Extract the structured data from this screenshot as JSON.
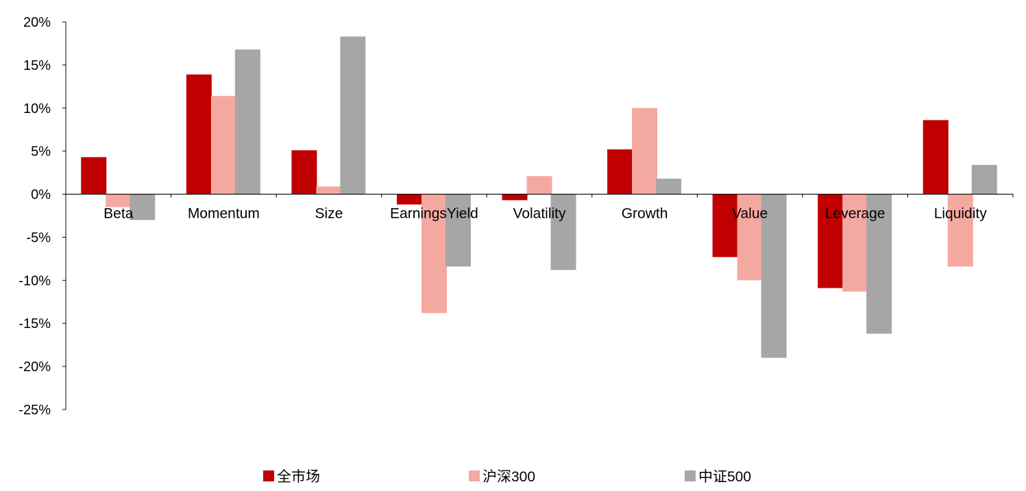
{
  "chart_data": {
    "type": "bar",
    "categories": [
      "Beta",
      "Momentum",
      "Size",
      "EarningsYield",
      "Volatility",
      "Growth",
      "Value",
      "Leverage",
      "Liquidity"
    ],
    "series": [
      {
        "name": "全市场",
        "color": "#c00000",
        "values": [
          4.3,
          13.9,
          5.1,
          -1.2,
          -0.7,
          5.2,
          -7.3,
          -10.9,
          8.6
        ]
      },
      {
        "name": "沪深300",
        "color": "#f4a9a0",
        "values": [
          -1.5,
          11.4,
          0.9,
          -13.8,
          2.1,
          10.0,
          -10.0,
          -11.3,
          -8.4
        ]
      },
      {
        "name": "中证500",
        "color": "#a6a6a6",
        "values": [
          -3.0,
          16.8,
          18.3,
          -8.4,
          -8.8,
          1.8,
          -19.0,
          -16.2,
          3.4
        ]
      }
    ],
    "y_ticks": [
      "20%",
      "15%",
      "10%",
      "5%",
      "0%",
      "-5%",
      "-10%",
      "-15%",
      "-20%",
      "-25%"
    ],
    "ylim": [
      -25,
      20
    ],
    "title": "",
    "xlabel": "",
    "ylabel": "",
    "legend_position": "bottom"
  }
}
